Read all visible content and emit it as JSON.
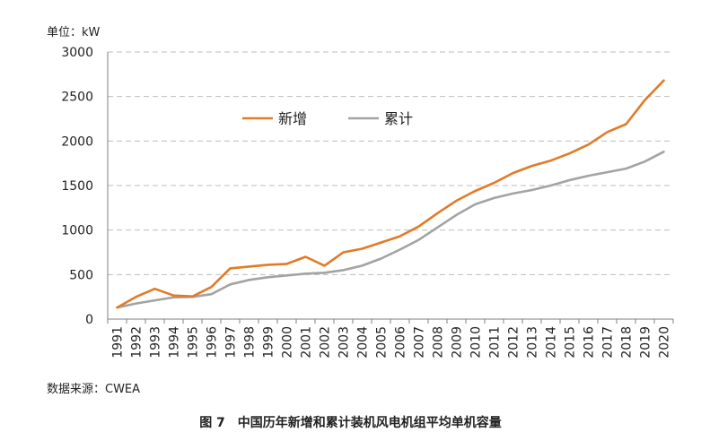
{
  "chart_data": {
    "type": "line",
    "unit_label": "单位：kW",
    "categories": [
      "1991",
      "1992",
      "1993",
      "1994",
      "1995",
      "1996",
      "1997",
      "1998",
      "1999",
      "2000",
      "2001",
      "2002",
      "2003",
      "2004",
      "2005",
      "2006",
      "2007",
      "2008",
      "2009",
      "2010",
      "2011",
      "2012",
      "2013",
      "2014",
      "2015",
      "2016",
      "2017",
      "2018",
      "2019",
      "2020"
    ],
    "series": [
      {
        "name": "新增",
        "color": "#e07b28",
        "values": [
          130,
          250,
          340,
          265,
          255,
          360,
          570,
          590,
          610,
          620,
          700,
          600,
          750,
          790,
          860,
          930,
          1040,
          1190,
          1330,
          1440,
          1530,
          1640,
          1720,
          1780,
          1860,
          1960,
          2100,
          2190,
          2460,
          2680
        ]
      },
      {
        "name": "累计",
        "color": "#a3a3a3",
        "values": [
          130,
          175,
          210,
          245,
          250,
          280,
          390,
          440,
          470,
          490,
          510,
          520,
          550,
          600,
          680,
          780,
          890,
          1030,
          1170,
          1290,
          1360,
          1410,
          1450,
          1500,
          1560,
          1610,
          1650,
          1690,
          1770,
          1880
        ]
      }
    ],
    "ylim": [
      0,
      3000
    ],
    "yticks": [
      0,
      500,
      1000,
      1500,
      2000,
      2500,
      3000
    ],
    "grid": true,
    "legend_position": "top-left"
  },
  "source": "数据来源：CWEA",
  "caption": "图 7　中国历年新增和累计装机风电机组平均单机容量"
}
